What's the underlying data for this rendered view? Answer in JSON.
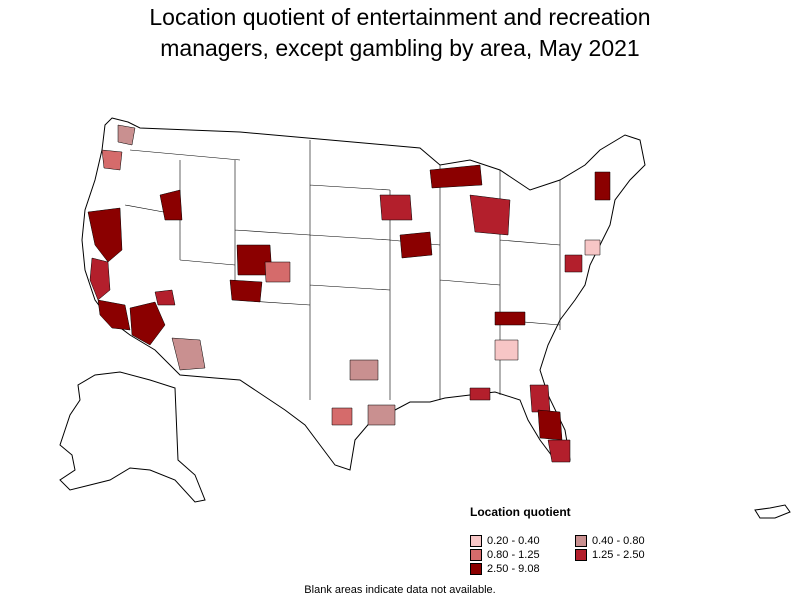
{
  "title_lines": [
    "Location quotient of entertainment and recreation",
    "managers, except gambling by area, May 2021"
  ],
  "legend": {
    "title": "Location quotient",
    "items": [
      {
        "label": "0.20 - 0.40",
        "color": "#f7c6c6"
      },
      {
        "label": "0.40 - 0.80",
        "color": "#c99090"
      },
      {
        "label": "0.80 - 1.25",
        "color": "#d56b6b"
      },
      {
        "label": "1.25 - 2.50",
        "color": "#b31f2c"
      },
      {
        "label": "2.50 - 9.08",
        "color": "#8b0000"
      }
    ]
  },
  "footnote": "Blank areas indicate data not available."
}
